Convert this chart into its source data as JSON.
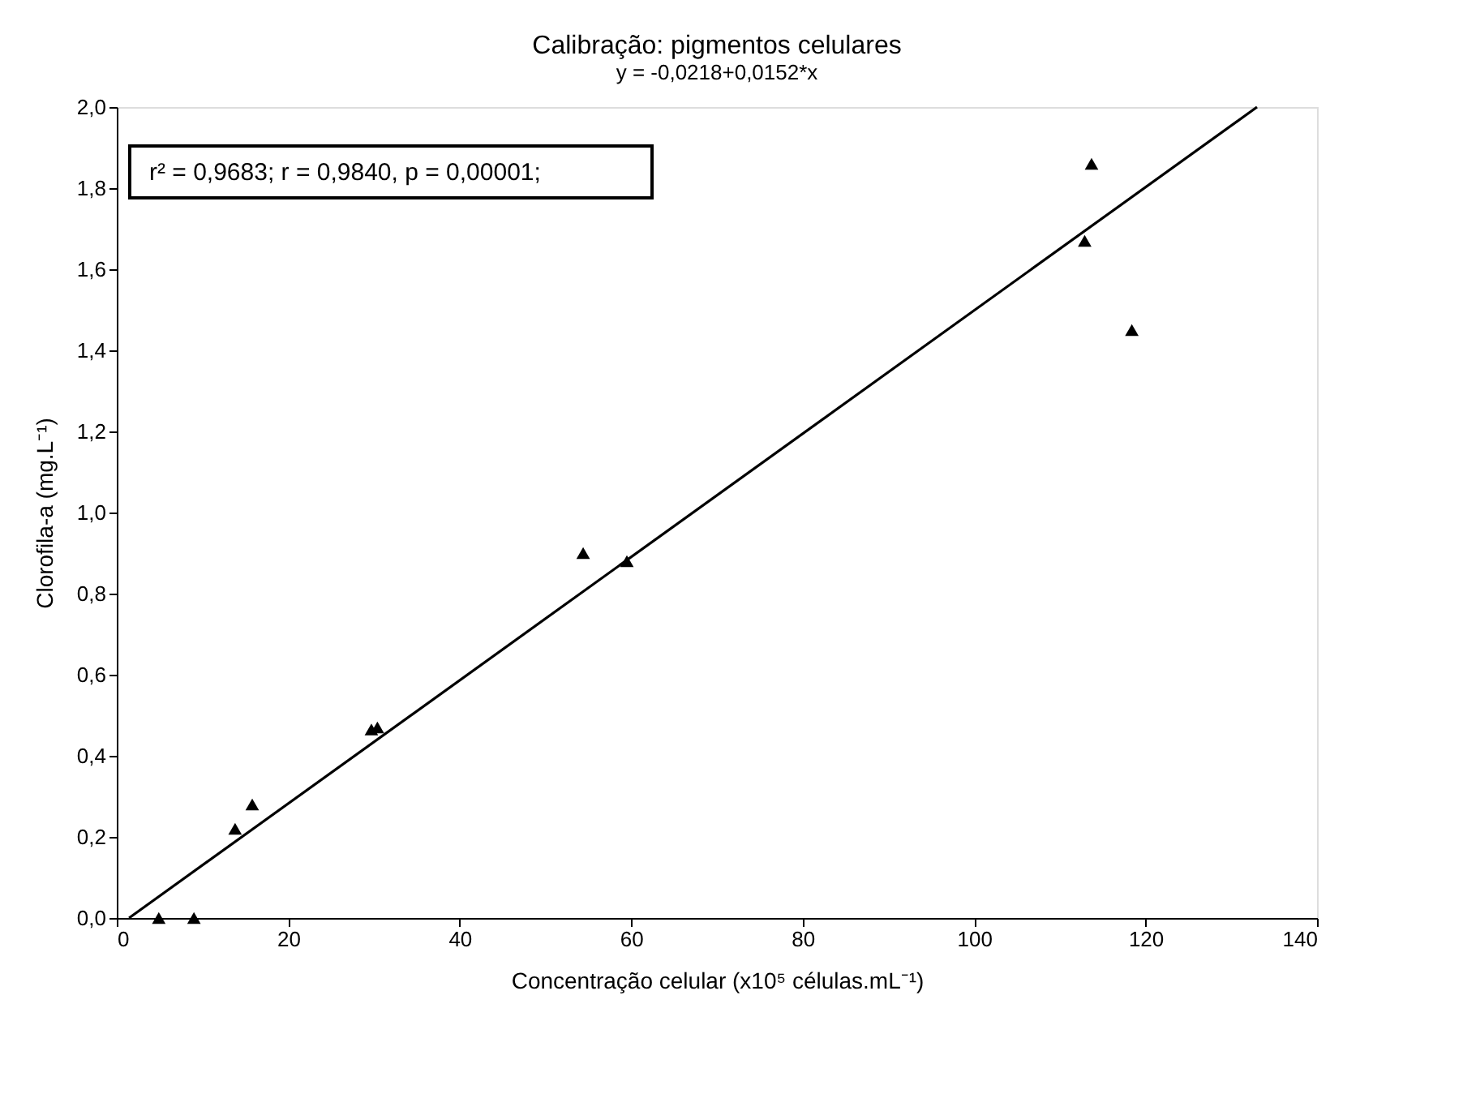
{
  "chart_data": {
    "type": "scatter",
    "title": "Calibração: pigmentos celulares",
    "subtitle": "y = -0,0218+0,0152*x",
    "xlabel": "Concentração celular (x10⁵ células.mL⁻¹)",
    "ylabel": "Clorofila-a (mg.L⁻¹)",
    "annotations": [
      "r² = 0,9683;   r = 0,9840,   p = 0,00001;"
    ],
    "series": [
      {
        "color": "#000000",
        "marker": "triangle",
        "x": [
          4.9,
          9.0,
          13.8,
          15.8,
          29.7,
          30.4,
          54.4,
          59.5,
          112.9,
          113.7,
          118.4
        ],
        "values": [
          0.0,
          0.0,
          0.22,
          0.28,
          0.465,
          0.47,
          0.9,
          0.88,
          1.67,
          1.86,
          1.45
        ]
      },
      {
        "type": "line",
        "color": "#000000",
        "marker": "none",
        "x": [
          1.43,
          133.0
        ],
        "values": [
          0.0,
          2.0
        ]
      }
    ],
    "xlim": [
      0,
      140
    ],
    "xticks": [
      0,
      20,
      40,
      60,
      80,
      100,
      120,
      140
    ],
    "ylim": [
      0,
      2.0
    ],
    "yticks": [
      {
        "value": 0,
        "label": "0,0"
      },
      {
        "value": 0.2,
        "label": "0,2"
      },
      {
        "value": 0.4,
        "label": "0,4"
      },
      {
        "value": 0.6,
        "label": "0,6"
      },
      {
        "value": 0.8,
        "label": "0,8"
      },
      {
        "value": 1.0,
        "label": "1,0"
      },
      {
        "value": 1.2,
        "label": "1,2"
      },
      {
        "value": 1.4,
        "label": "1,4"
      },
      {
        "value": 1.6,
        "label": "1,6"
      },
      {
        "value": 1.8,
        "label": "1,8"
      },
      {
        "value": 2.0,
        "label": "2,0"
      }
    ],
    "grid": false
  }
}
